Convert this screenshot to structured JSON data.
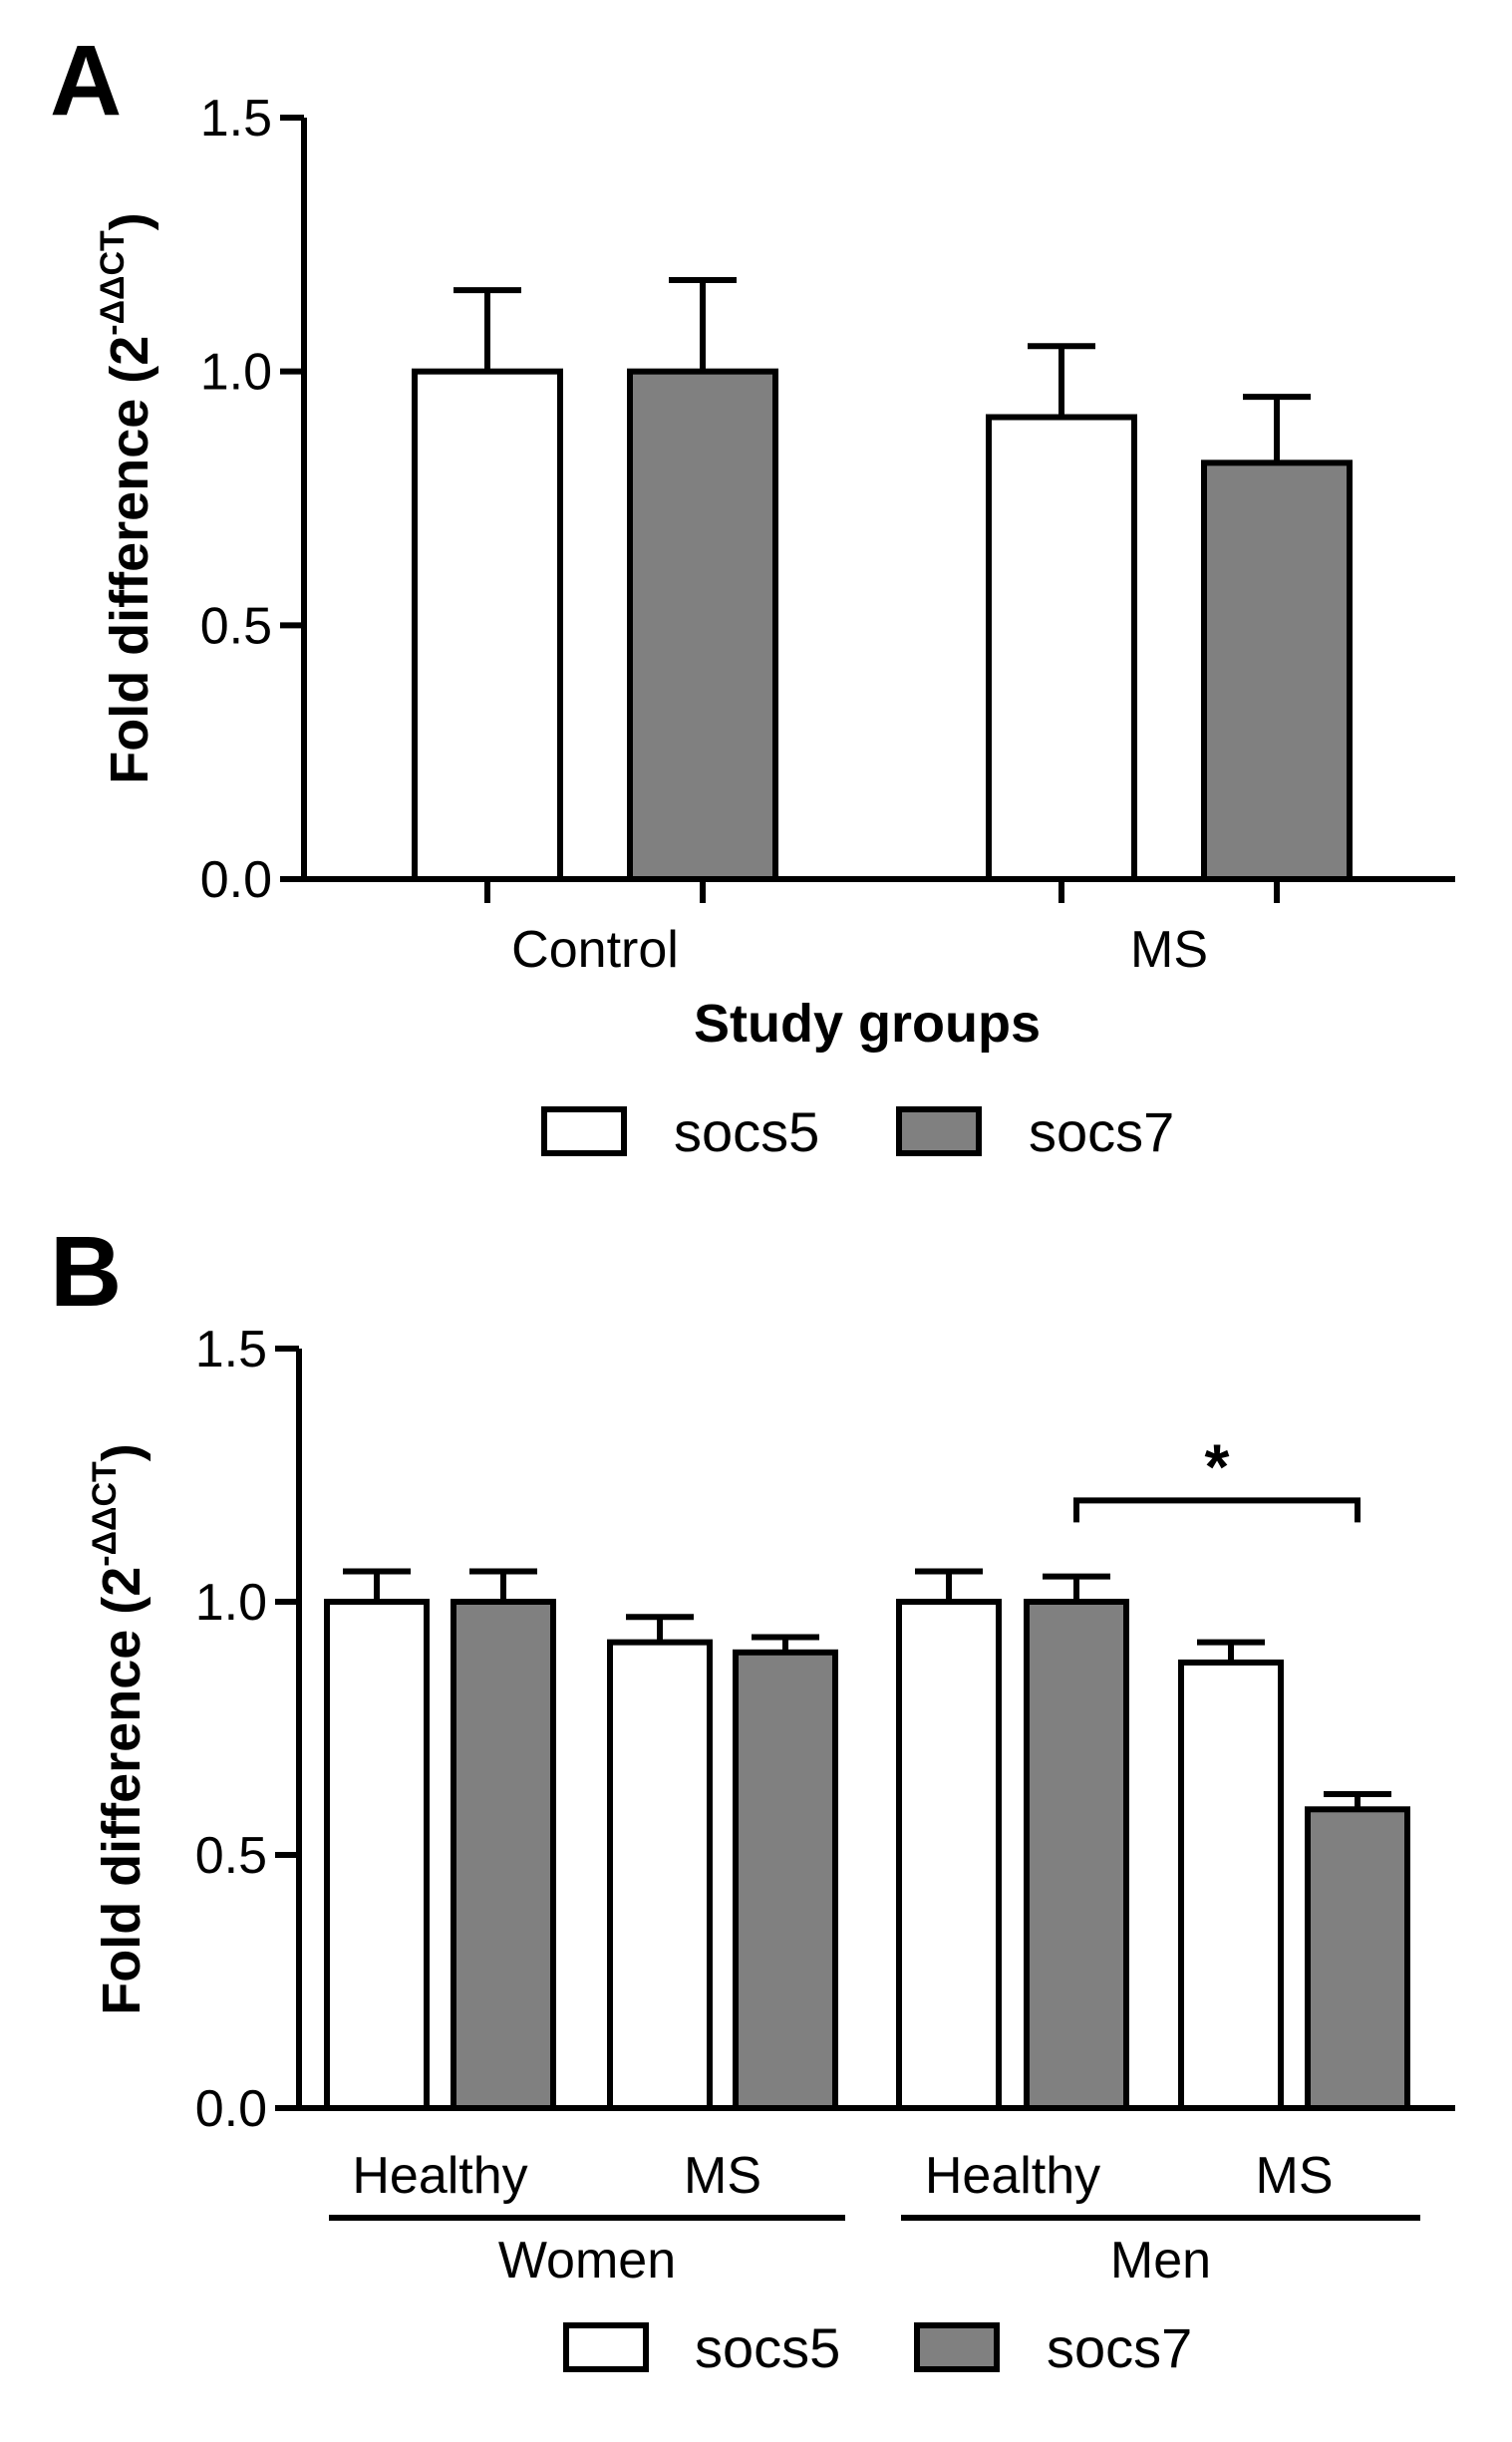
{
  "colors": {
    "socs5": "#ffffff",
    "socs7": "#808080",
    "stroke": "#000000"
  },
  "chart_data": [
    {
      "panel": "A",
      "type": "bar",
      "ylabel_main": "Fold difference (2",
      "ylabel_sup": "-ΔΔCT",
      "ylabel_close": ")",
      "xlabel": "Study groups",
      "ylim": [
        0,
        1.5
      ],
      "yticks": [
        "0.0",
        "0.5",
        "1.0",
        "1.5"
      ],
      "categories": [
        "Control",
        "MS"
      ],
      "series": [
        {
          "name": "socs5",
          "color": "#ffffff",
          "values": [
            1.0,
            0.91
          ],
          "errors": [
            0.16,
            0.14
          ]
        },
        {
          "name": "socs7",
          "color": "#808080",
          "values": [
            1.0,
            0.82
          ],
          "errors": [
            0.18,
            0.13
          ]
        }
      ],
      "legend": [
        "socs5",
        "socs7"
      ]
    },
    {
      "panel": "B",
      "type": "bar",
      "ylabel_main": "Fold difference (2",
      "ylabel_sup": "-ΔΔCT",
      "ylabel_close": ")",
      "ylim": [
        0,
        1.5
      ],
      "yticks": [
        "0.0",
        "0.5",
        "1.0",
        "1.5"
      ],
      "categories": [
        "Healthy",
        "MS",
        "Healthy",
        "MS"
      ],
      "groups": [
        "Women",
        "Men"
      ],
      "series": [
        {
          "name": "socs5",
          "color": "#ffffff",
          "values": [
            1.0,
            0.92,
            1.0,
            0.88
          ],
          "errors": [
            0.06,
            0.05,
            0.06,
            0.04
          ]
        },
        {
          "name": "socs7",
          "color": "#808080",
          "values": [
            1.0,
            0.9,
            1.0,
            0.59
          ],
          "errors": [
            0.06,
            0.03,
            0.05,
            0.03
          ]
        }
      ],
      "significance": {
        "label": "*",
        "from_category": 2,
        "from_series": 1,
        "to_category": 3,
        "to_series": 1,
        "level": 1.2
      },
      "legend": [
        "socs5",
        "socs7"
      ]
    }
  ]
}
